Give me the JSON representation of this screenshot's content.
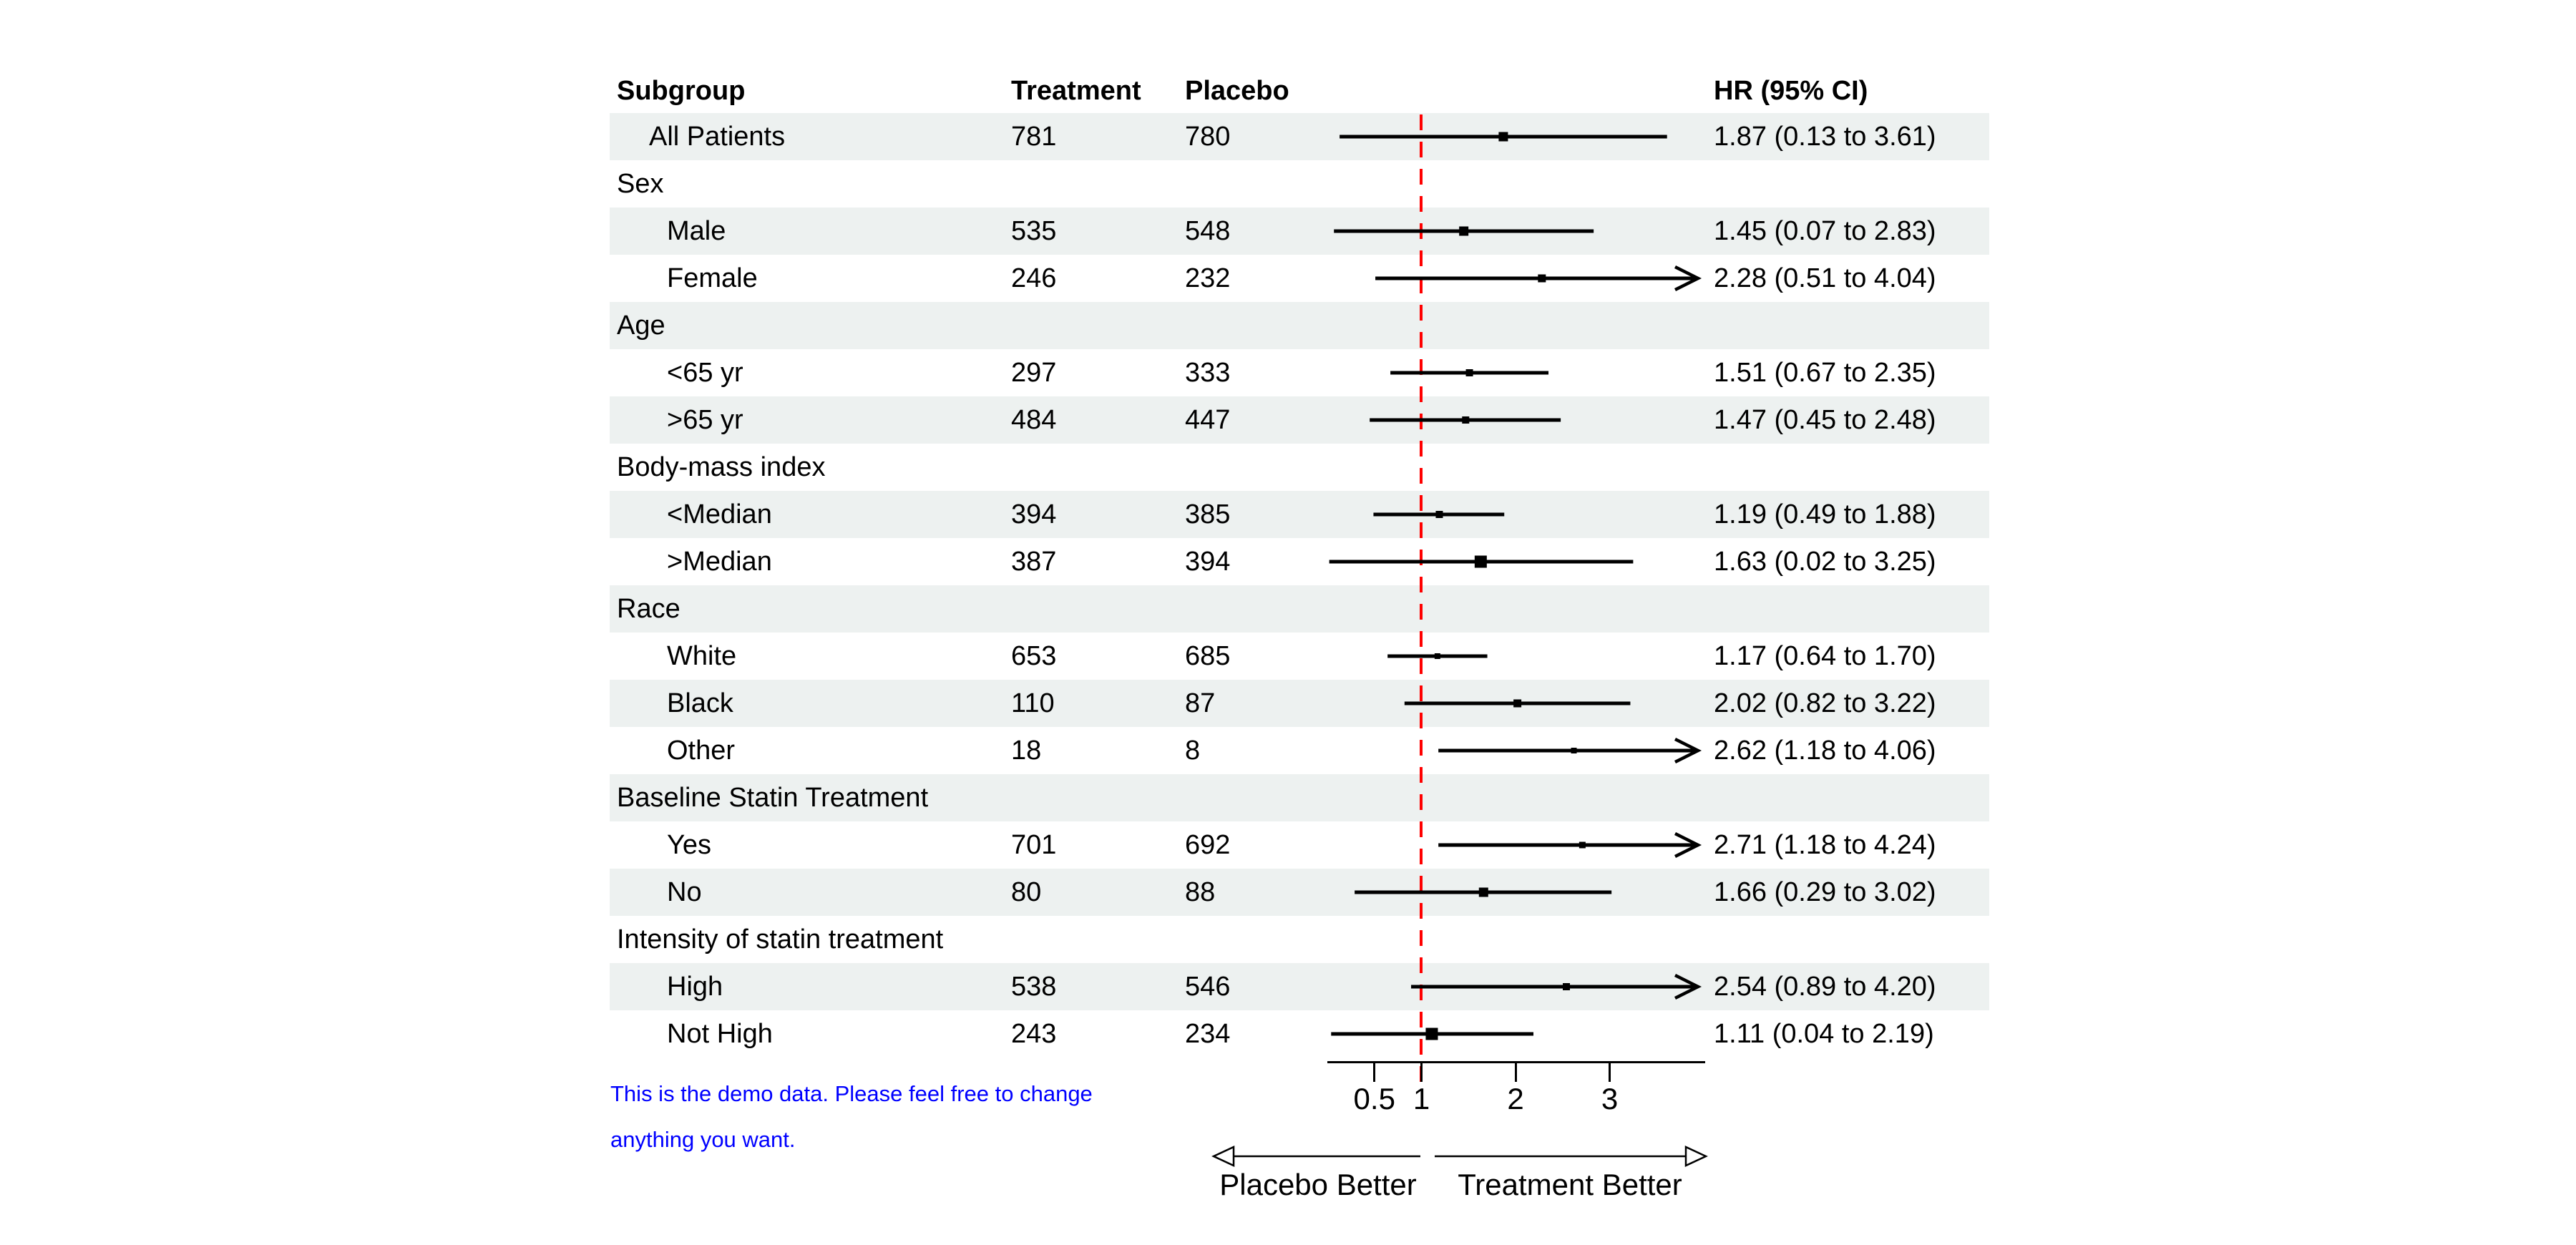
{
  "chart_data": {
    "type": "forest",
    "columns": [
      "Subgroup",
      "Treatment",
      "Placebo",
      "HR (95% CI)"
    ],
    "x_axis": {
      "scale": "linear",
      "range": [
        0,
        4
      ],
      "ticks": [
        {
          "label": "0.5",
          "value": 0.5
        },
        {
          "label": "1",
          "value": 1
        },
        {
          "label": "2",
          "value": 2
        },
        {
          "label": "3",
          "value": 3
        }
      ],
      "reference_line": 1
    },
    "direction_labels": {
      "left": "Placebo Better",
      "right": "Treatment Better"
    },
    "rows": [
      {
        "label": "All Patients",
        "indent": 1,
        "treatment": "781",
        "placebo": "780",
        "hr": 1.87,
        "ci_low": 0.13,
        "ci_high": 3.61,
        "hr_text": "1.87 (0.13 to 3.61)",
        "marker_size": 13
      },
      {
        "label": "Sex",
        "indent": 0,
        "is_category": true
      },
      {
        "label": "Male",
        "indent": 2,
        "treatment": "535",
        "placebo": "548",
        "hr": 1.45,
        "ci_low": 0.07,
        "ci_high": 2.83,
        "hr_text": "1.45 (0.07 to 2.83)",
        "marker_size": 13
      },
      {
        "label": "Female",
        "indent": 2,
        "treatment": "246",
        "placebo": "232",
        "hr": 2.28,
        "ci_low": 0.51,
        "ci_high": 4.04,
        "hr_text": "2.28 (0.51 to 4.04)",
        "marker_size": 11
      },
      {
        "label": "Age",
        "indent": 0,
        "is_category": true
      },
      {
        "label": "<65 yr",
        "indent": 2,
        "treatment": "297",
        "placebo": "333",
        "hr": 1.51,
        "ci_low": 0.67,
        "ci_high": 2.35,
        "hr_text": "1.51 (0.67 to 2.35)",
        "marker_size": 10
      },
      {
        "label": ">65 yr",
        "indent": 2,
        "treatment": "484",
        "placebo": "447",
        "hr": 1.47,
        "ci_low": 0.45,
        "ci_high": 2.48,
        "hr_text": "1.47 (0.45 to 2.48)",
        "marker_size": 10
      },
      {
        "label": "Body-mass index",
        "indent": 0,
        "is_category": true
      },
      {
        "label": "<Median",
        "indent": 2,
        "treatment": "394",
        "placebo": "385",
        "hr": 1.19,
        "ci_low": 0.49,
        "ci_high": 1.88,
        "hr_text": "1.19 (0.49 to 1.88)",
        "marker_size": 10
      },
      {
        "label": ">Median",
        "indent": 2,
        "treatment": "387",
        "placebo": "394",
        "hr": 1.63,
        "ci_low": 0.02,
        "ci_high": 3.25,
        "hr_text": "1.63 (0.02 to 3.25)",
        "marker_size": 17
      },
      {
        "label": "Race",
        "indent": 0,
        "is_category": true
      },
      {
        "label": "White",
        "indent": 2,
        "treatment": "653",
        "placebo": "685",
        "hr": 1.17,
        "ci_low": 0.64,
        "ci_high": 1.7,
        "hr_text": "1.17 (0.64 to 1.70)",
        "marker_size": 8
      },
      {
        "label": "Black",
        "indent": 2,
        "treatment": "110",
        "placebo": "87",
        "hr": 2.02,
        "ci_low": 0.82,
        "ci_high": 3.22,
        "hr_text": "2.02 (0.82 to 3.22)",
        "marker_size": 11
      },
      {
        "label": "Other",
        "indent": 2,
        "treatment": "18",
        "placebo": "8",
        "hr": 2.62,
        "ci_low": 1.18,
        "ci_high": 4.06,
        "hr_text": "2.62 (1.18 to 4.06)",
        "marker_size": 8
      },
      {
        "label": "Baseline Statin Treatment",
        "indent": 0,
        "is_category": true
      },
      {
        "label": "Yes",
        "indent": 2,
        "treatment": "701",
        "placebo": "692",
        "hr": 2.71,
        "ci_low": 1.18,
        "ci_high": 4.24,
        "hr_text": "2.71 (1.18 to 4.24)",
        "marker_size": 9
      },
      {
        "label": "No",
        "indent": 2,
        "treatment": "80",
        "placebo": "88",
        "hr": 1.66,
        "ci_low": 0.29,
        "ci_high": 3.02,
        "hr_text": "1.66 (0.29 to 3.02)",
        "marker_size": 13
      },
      {
        "label": "Intensity of statin treatment",
        "indent": 0,
        "is_category": true
      },
      {
        "label": "High",
        "indent": 2,
        "treatment": "538",
        "placebo": "546",
        "hr": 2.54,
        "ci_low": 0.89,
        "ci_high": 4.2,
        "hr_text": "2.54 (0.89 to 4.20)",
        "marker_size": 10
      },
      {
        "label": "Not High",
        "indent": 2,
        "treatment": "243",
        "placebo": "234",
        "hr": 1.11,
        "ci_low": 0.04,
        "ci_high": 2.19,
        "hr_text": "1.11 (0.04 to 2.19)",
        "marker_size": 17
      }
    ]
  },
  "footnote": {
    "line1": "This is the demo data. Please feel free to change",
    "line2": "anything you want."
  },
  "colors": {
    "stripe": "#edf1f0",
    "reference_line": "#ff0000",
    "ink": "#000000",
    "footnote": "#0000ff"
  }
}
